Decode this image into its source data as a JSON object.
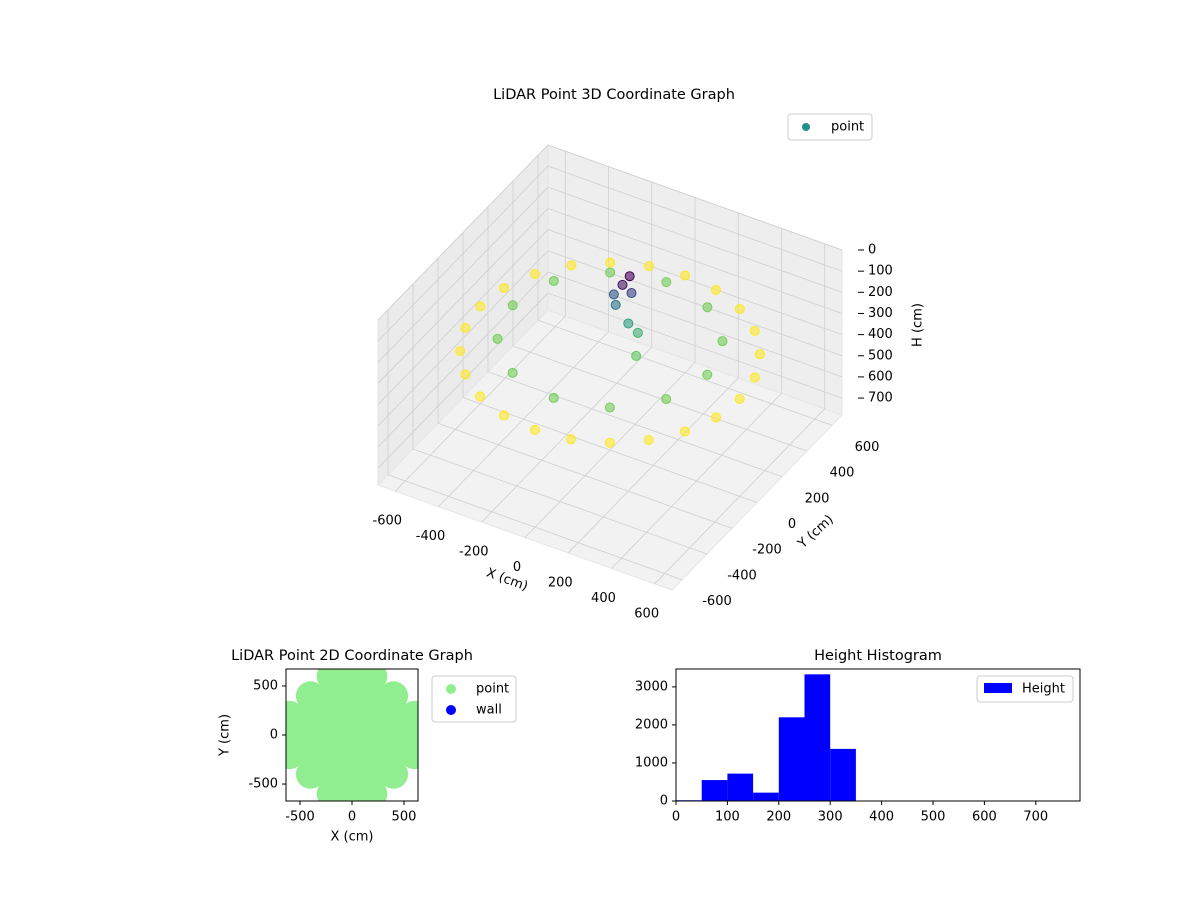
{
  "chart_data": [
    {
      "type": "scatter3d",
      "title": "LiDAR Point 3D Coordinate Graph",
      "xlabel": "X (cm)",
      "ylabel": "Y (cm)",
      "zlabel": "H (cm)",
      "xlim": [
        -680,
        680
      ],
      "ylim": [
        -680,
        680
      ],
      "zlim": [
        0,
        780
      ],
      "zinverted": true,
      "xticks": [
        -600,
        -400,
        -200,
        0,
        200,
        400,
        600
      ],
      "yticks": [
        -600,
        -400,
        -200,
        0,
        200,
        400,
        600
      ],
      "zticks": [
        0,
        100,
        200,
        300,
        400,
        500,
        600,
        700
      ],
      "colormap": "viridis",
      "legend_loc": "upper right",
      "grid": true,
      "series": [
        {
          "name": "point",
          "color": "#21918c",
          "x": [
            600,
            580,
            520,
            424,
            300,
            155,
            0,
            -155,
            -300,
            -424,
            -520,
            -580,
            -600,
            -580,
            -520,
            -424,
            -300,
            -155,
            0,
            155,
            300,
            424,
            520,
            580,
            450,
            390,
            225,
            0,
            -225,
            -390,
            -450,
            -390,
            -225,
            0,
            225,
            390,
            0,
            30,
            -20,
            50,
            10,
            -40,
            150,
            100
          ],
          "y": [
            0,
            155,
            300,
            424,
            520,
            580,
            600,
            580,
            520,
            424,
            300,
            155,
            0,
            -155,
            -300,
            -424,
            -520,
            -580,
            -600,
            -580,
            -520,
            -424,
            -300,
            -155,
            0,
            225,
            390,
            450,
            390,
            225,
            0,
            -225,
            -390,
            -450,
            -390,
            -225,
            100,
            120,
            80,
            60,
            140,
            100,
            -50,
            50
          ],
          "z": [
            320,
            320,
            320,
            320,
            320,
            320,
            320,
            320,
            320,
            320,
            320,
            320,
            320,
            320,
            320,
            320,
            320,
            320,
            320,
            320,
            320,
            320,
            320,
            320,
            260,
            260,
            260,
            260,
            260,
            260,
            260,
            260,
            260,
            260,
            260,
            260,
            60,
            100,
            150,
            200,
            40,
            120,
            250,
            220
          ]
        }
      ]
    },
    {
      "type": "scatter",
      "title": "LiDAR Point 2D Coordinate Graph",
      "xlabel": "X (cm)",
      "ylabel": "Y (cm)",
      "xlim": [
        -635,
        635
      ],
      "ylim": [
        -673,
        673
      ],
      "xticks": [
        -500,
        0,
        500
      ],
      "yticks": [
        -500,
        0,
        500
      ],
      "legend_loc": "outside upper right",
      "series": [
        {
          "name": "point",
          "color": "#90ee90",
          "x": [
            -600,
            -600,
            -600,
            -400,
            -400,
            -400,
            -400,
            -400,
            -200,
            -200,
            -200,
            -200,
            -200,
            -200,
            -200,
            0,
            0,
            0,
            0,
            0,
            0,
            0,
            200,
            200,
            200,
            200,
            200,
            200,
            200,
            400,
            400,
            400,
            400,
            400,
            600,
            600,
            600
          ],
          "y": [
            -200,
            0,
            200,
            -400,
            -200,
            0,
            200,
            400,
            -600,
            -400,
            -200,
            0,
            200,
            400,
            600,
            -600,
            -400,
            -200,
            0,
            200,
            400,
            600,
            -600,
            -400,
            -200,
            0,
            200,
            400,
            600,
            -400,
            -200,
            0,
            200,
            400,
            -200,
            0,
            200
          ]
        },
        {
          "name": "wall",
          "color": "#0000ff",
          "x": [],
          "y": []
        }
      ]
    },
    {
      "type": "histogram",
      "title": "Height Histogram",
      "bins": [
        0,
        50,
        100,
        150,
        200,
        250,
        300,
        350,
        400,
        450,
        500,
        550,
        600,
        650,
        700,
        750
      ],
      "xlim": [
        0,
        786
      ],
      "ylim": [
        0,
        3470
      ],
      "xticks": [
        0,
        100,
        200,
        300,
        400,
        500,
        600,
        700
      ],
      "yticks": [
        0,
        1000,
        2000,
        3000
      ],
      "legend_loc": "upper right",
      "series": [
        {
          "name": "Height",
          "color": "#0000ff",
          "values": [
            20,
            550,
            720,
            220,
            2200,
            3330,
            1370,
            0,
            0,
            0,
            0,
            0,
            0,
            0,
            0
          ]
        }
      ]
    }
  ]
}
